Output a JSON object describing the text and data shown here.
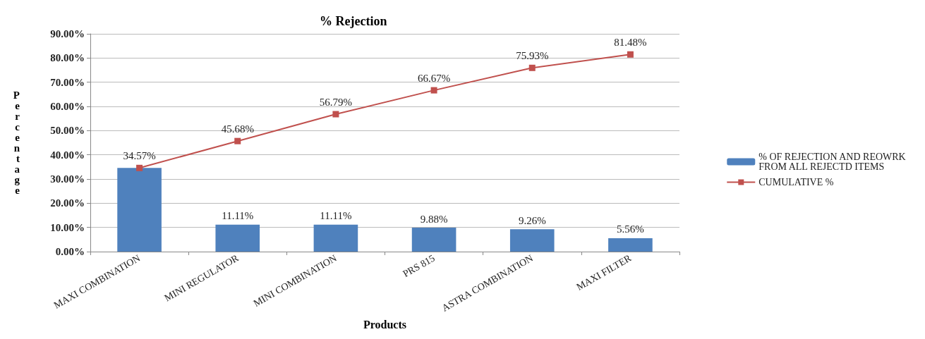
{
  "chart_data": {
    "type": "bar",
    "title": "% Rejection",
    "xlabel": "Products",
    "ylabel": "Percentage",
    "categories": [
      "MAXI COMBINATION",
      "MINI REGULATOR",
      "MINI COMBINATION",
      "PRS 815",
      "ASTRA COMBINATION",
      "MAXI FILTER"
    ],
    "series": [
      {
        "name": "% OF REJECTION AND REOWRK FROM ALL REJECTD ITEMS",
        "color": "#4f81bd",
        "values": [
          34.57,
          11.11,
          11.11,
          9.88,
          9.26,
          5.56
        ],
        "value_labels": [
          null,
          "11.11%",
          "11.11%",
          "9.88%",
          "9.26%",
          "5.56%"
        ]
      },
      {
        "name": "CUMULATIVE %",
        "type": "line",
        "color": "#c0504d",
        "marker": "square",
        "values": [
          34.57,
          45.68,
          56.79,
          66.67,
          75.93,
          81.48
        ],
        "value_labels": [
          "34.57%",
          "45.68%",
          "56.79%",
          "66.67%",
          "75.93%",
          "81.48%"
        ]
      }
    ],
    "ylim": [
      0,
      90
    ],
    "yticks": [
      {
        "value": 0,
        "label": "0.00%"
      },
      {
        "value": 10,
        "label": "10.00%"
      },
      {
        "value": 20,
        "label": "20.00%"
      },
      {
        "value": 30,
        "label": "30.00%"
      },
      {
        "value": 40,
        "label": "40.00%"
      },
      {
        "value": 50,
        "label": "50.00%"
      },
      {
        "value": 60,
        "label": "60.00%"
      },
      {
        "value": 70,
        "label": "70.00%"
      },
      {
        "value": 80,
        "label": "80.00%"
      },
      {
        "value": 90,
        "label": "90.00%"
      }
    ],
    "grid": "y",
    "legend": "right"
  }
}
